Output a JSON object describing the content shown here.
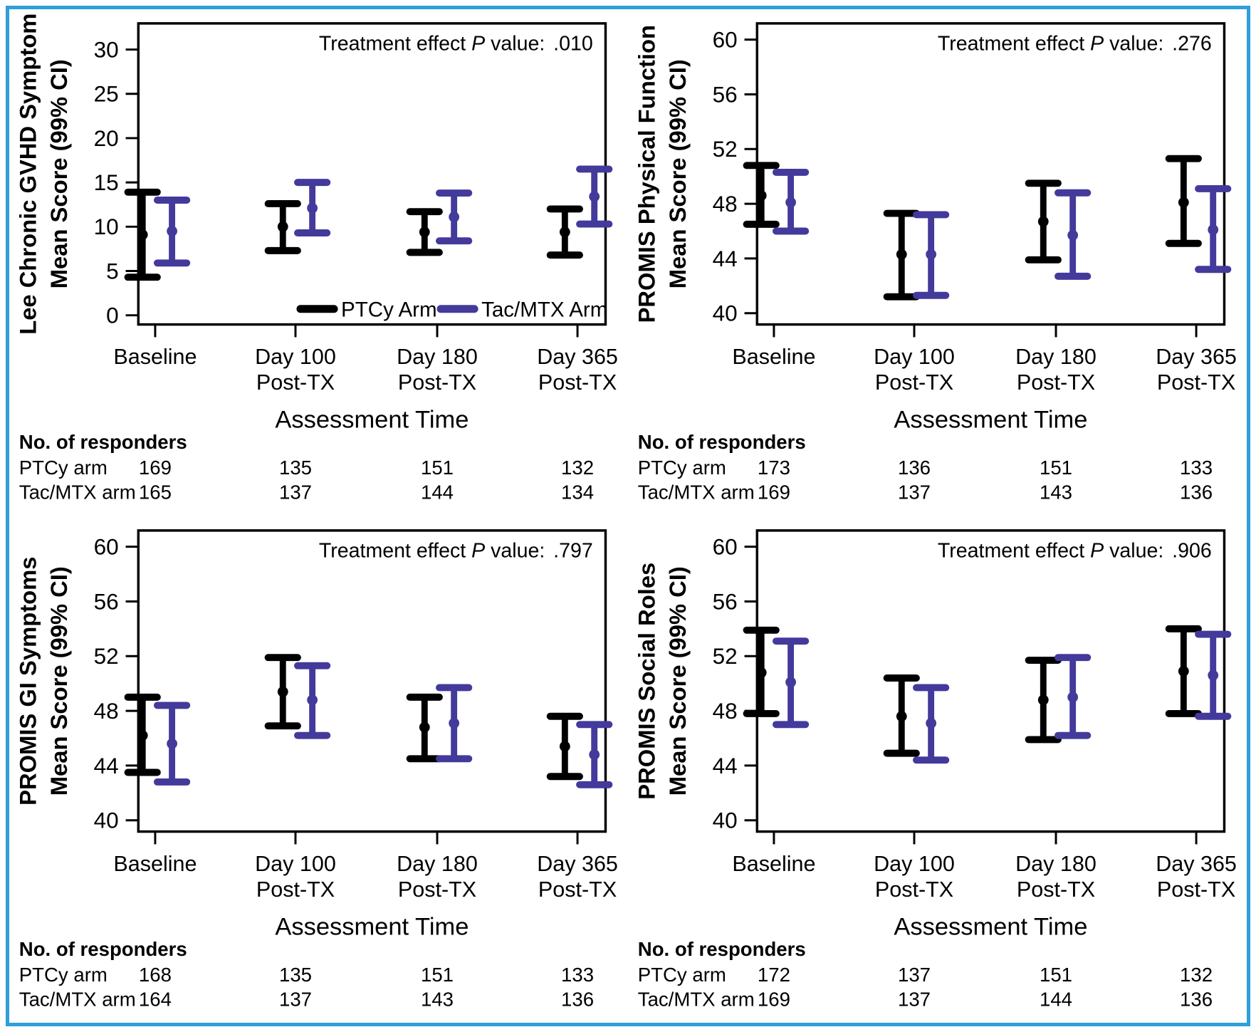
{
  "figure": {
    "colors": {
      "frame": "#2E9FD9",
      "ptcy": "#000000",
      "tacmtx": "#433A9B",
      "text": "#000000"
    },
    "x_axis_title": "Assessment Time",
    "responders_header": "No. of responders",
    "p_prefix": "Treatment effect",
    "p_symbol": "P",
    "p_mid": "value:",
    "categories": [
      [
        "Baseline"
      ],
      [
        "Day 100",
        "Post-TX"
      ],
      [
        "Day 180",
        "Post-TX"
      ],
      [
        "Day 365",
        "Post-TX"
      ]
    ]
  },
  "chart_data": [
    {
      "type": "errorbar",
      "title_lines": [
        "Lee Chronic GVHD Symptom",
        "Mean Score (99% CI)"
      ],
      "p_value": ".010",
      "yticks": [
        0,
        5,
        10,
        15,
        20,
        25,
        30
      ],
      "ylim": [
        -1.5,
        32.5
      ],
      "categories": [
        "Baseline",
        "Day 100 Post-TX",
        "Day 180 Post-TX",
        "Day 365 Post-TX"
      ],
      "legend": true,
      "legend_position": "inside-bottom-center",
      "grid": false,
      "series": [
        {
          "name": "PTCy Arm",
          "row_label": "PTCy arm",
          "color_key": "ptcy",
          "mean": [
            9.1,
            10.0,
            9.4,
            9.4
          ],
          "ci_low": [
            4.3,
            7.3,
            7.1,
            6.8
          ],
          "ci_high": [
            13.9,
            12.6,
            11.7,
            12.0
          ],
          "responders": [
            169,
            135,
            151,
            132
          ]
        },
        {
          "name": "Tac/MTX Arm",
          "row_label": "Tac/MTX arm",
          "color_key": "tacmtx",
          "mean": [
            9.5,
            12.1,
            11.1,
            13.4
          ],
          "ci_low": [
            5.9,
            9.3,
            8.4,
            10.3
          ],
          "ci_high": [
            13.0,
            15.0,
            13.8,
            16.5
          ],
          "responders": [
            165,
            137,
            144,
            134
          ]
        }
      ]
    },
    {
      "type": "errorbar",
      "title_lines": [
        "PROMIS Physical Function",
        "Mean Score (99% CI)"
      ],
      "p_value": ".276",
      "yticks": [
        40,
        44,
        48,
        52,
        56,
        60
      ],
      "ylim": [
        38.5,
        61.2
      ],
      "categories": [
        "Baseline",
        "Day 100 Post-TX",
        "Day 180 Post-TX",
        "Day 365 Post-TX"
      ],
      "legend": false,
      "grid": false,
      "series": [
        {
          "name": "PTCy Arm",
          "row_label": "PTCy arm",
          "color_key": "ptcy",
          "mean": [
            48.6,
            44.3,
            46.7,
            48.1
          ],
          "ci_low": [
            46.5,
            41.2,
            43.9,
            45.1
          ],
          "ci_high": [
            50.8,
            47.3,
            49.5,
            51.3
          ],
          "responders": [
            173,
            136,
            151,
            133
          ]
        },
        {
          "name": "Tac/MTX Arm",
          "row_label": "Tac/MTX arm",
          "color_key": "tacmtx",
          "mean": [
            48.1,
            44.3,
            45.7,
            46.1
          ],
          "ci_low": [
            46.0,
            41.3,
            42.7,
            43.2
          ],
          "ci_high": [
            50.3,
            47.2,
            48.8,
            49.1
          ],
          "responders": [
            169,
            137,
            143,
            136
          ]
        }
      ]
    },
    {
      "type": "errorbar",
      "title_lines": [
        "PROMIS GI Symptoms",
        "Mean Score (99% CI)"
      ],
      "p_value": ".797",
      "yticks": [
        40,
        44,
        48,
        52,
        56,
        60
      ],
      "ylim": [
        38.5,
        61.2
      ],
      "categories": [
        "Baseline",
        "Day 100 Post-TX",
        "Day 180 Post-TX",
        "Day 365 Post-TX"
      ],
      "legend": false,
      "grid": false,
      "series": [
        {
          "name": "PTCy Arm",
          "row_label": "PTCy arm",
          "color_key": "ptcy",
          "mean": [
            46.2,
            49.4,
            46.8,
            45.4
          ],
          "ci_low": [
            43.5,
            46.9,
            44.5,
            43.2
          ],
          "ci_high": [
            49.0,
            51.9,
            49.0,
            47.6
          ],
          "responders": [
            168,
            135,
            151,
            133
          ]
        },
        {
          "name": "Tac/MTX Arm",
          "row_label": "Tac/MTX arm",
          "color_key": "tacmtx",
          "mean": [
            45.6,
            48.8,
            47.1,
            44.8
          ],
          "ci_low": [
            42.8,
            46.2,
            44.5,
            42.6
          ],
          "ci_high": [
            48.4,
            51.3,
            49.7,
            47.0
          ],
          "responders": [
            164,
            137,
            143,
            136
          ]
        }
      ]
    },
    {
      "type": "errorbar",
      "title_lines": [
        "PROMIS Social Roles",
        "Mean Score (99% CI)"
      ],
      "p_value": ".906",
      "yticks": [
        40,
        44,
        48,
        52,
        56,
        60
      ],
      "ylim": [
        38.5,
        61.2
      ],
      "categories": [
        "Baseline",
        "Day 100 Post-TX",
        "Day 180 Post-TX",
        "Day 365 Post-TX"
      ],
      "legend": false,
      "grid": false,
      "series": [
        {
          "name": "PTCy Arm",
          "row_label": "PTCy arm",
          "color_key": "ptcy",
          "mean": [
            50.8,
            47.6,
            48.8,
            50.9
          ],
          "ci_low": [
            47.8,
            44.9,
            45.9,
            47.8
          ],
          "ci_high": [
            53.9,
            50.4,
            51.7,
            54.0
          ],
          "responders": [
            172,
            137,
            151,
            132
          ]
        },
        {
          "name": "Tac/MTX Arm",
          "row_label": "Tac/MTX arm",
          "color_key": "tacmtx",
          "mean": [
            50.1,
            47.1,
            49.0,
            50.6
          ],
          "ci_low": [
            47.0,
            44.4,
            46.2,
            47.6
          ],
          "ci_high": [
            53.1,
            49.7,
            51.9,
            53.6
          ],
          "responders": [
            169,
            137,
            144,
            136
          ]
        }
      ]
    }
  ]
}
